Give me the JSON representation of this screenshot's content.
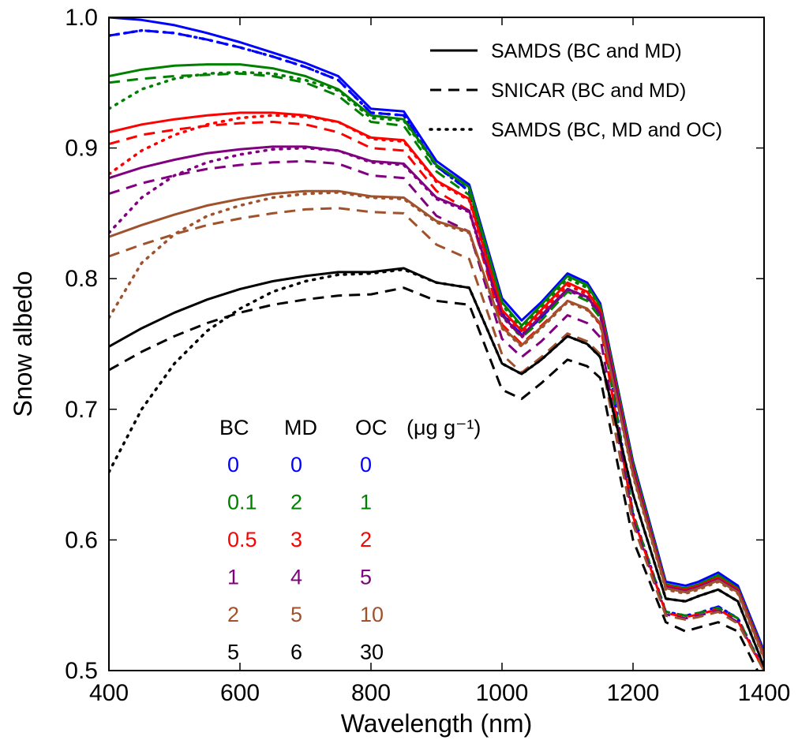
{
  "chart_data": {
    "type": "line",
    "xlabel": "Wavelength (nm)",
    "ylabel": "Snow albedo",
    "xlim": [
      400,
      1400
    ],
    "ylim": [
      0.5,
      1.0
    ],
    "xticks": [
      "400",
      "600",
      "800",
      "1000",
      "1200",
      "1400"
    ],
    "yticks": [
      "0.5",
      "0.6",
      "0.7",
      "0.8",
      "0.9",
      "1.0"
    ],
    "x": [
      400,
      450,
      500,
      550,
      600,
      650,
      700,
      750,
      800,
      850,
      900,
      950,
      1000,
      1030,
      1060,
      1100,
      1130,
      1150,
      1200,
      1250,
      1280,
      1300,
      1330,
      1360,
      1400
    ],
    "line_styles": [
      {
        "label": "SAMDS (BC and MD)",
        "dash": "solid"
      },
      {
        "label": "SNICAR (BC and MD)",
        "dash": "dashed"
      },
      {
        "label": "SAMDS (BC, MD and OC)",
        "dash": "dotted"
      }
    ],
    "legend_position": "top-right",
    "concentration_table": {
      "headers": [
        "BC",
        "MD",
        "OC",
        "(μg g⁻¹)"
      ],
      "rows": [
        {
          "bc": "0",
          "md": "0",
          "oc": "0",
          "color": "#0000ff"
        },
        {
          "bc": "0.1",
          "md": "2",
          "oc": "1",
          "color": "#008000"
        },
        {
          "bc": "0.5",
          "md": "3",
          "oc": "2",
          "color": "#ff0000"
        },
        {
          "bc": "1",
          "md": "4",
          "oc": "5",
          "color": "#800080"
        },
        {
          "bc": "2",
          "md": "5",
          "oc": "10",
          "color": "#a0522d"
        },
        {
          "bc": "5",
          "md": "6",
          "oc": "30",
          "color": "#000000"
        }
      ]
    },
    "series": [
      {
        "group": 0,
        "style": "solid",
        "color": "#0000ff",
        "values": [
          1.0,
          0.998,
          0.994,
          0.988,
          0.981,
          0.973,
          0.965,
          0.955,
          0.93,
          0.928,
          0.89,
          0.872,
          0.785,
          0.768,
          0.782,
          0.804,
          0.797,
          0.781,
          0.66,
          0.568,
          0.565,
          0.568,
          0.575,
          0.565,
          0.515
        ]
      },
      {
        "group": 0,
        "style": "dashed",
        "color": "#0000ff",
        "values": [
          0.986,
          0.99,
          0.988,
          0.983,
          0.977,
          0.97,
          0.962,
          0.952,
          0.927,
          0.925,
          0.886,
          0.867,
          0.773,
          0.757,
          0.77,
          0.792,
          0.786,
          0.774,
          0.62,
          0.545,
          0.542,
          0.544,
          0.549,
          0.54,
          0.5
        ]
      },
      {
        "group": 0,
        "style": "dotted",
        "color": "#0000ff",
        "values": [
          0.986,
          0.99,
          0.988,
          0.983,
          0.977,
          0.97,
          0.962,
          0.952,
          0.927,
          0.925,
          0.886,
          0.867,
          0.773,
          0.757,
          0.77,
          0.792,
          0.786,
          0.774,
          0.62,
          0.545,
          0.542,
          0.544,
          0.549,
          0.54,
          0.5
        ]
      },
      {
        "group": 1,
        "style": "solid",
        "color": "#008000",
        "values": [
          0.955,
          0.96,
          0.963,
          0.964,
          0.964,
          0.961,
          0.955,
          0.945,
          0.925,
          0.922,
          0.887,
          0.87,
          0.782,
          0.764,
          0.78,
          0.802,
          0.795,
          0.779,
          0.658,
          0.566,
          0.563,
          0.566,
          0.573,
          0.563,
          0.513
        ]
      },
      {
        "group": 1,
        "style": "dashed",
        "color": "#008000",
        "values": [
          0.95,
          0.953,
          0.955,
          0.956,
          0.957,
          0.955,
          0.95,
          0.94,
          0.92,
          0.917,
          0.882,
          0.864,
          0.772,
          0.755,
          0.768,
          0.79,
          0.783,
          0.77,
          0.62,
          0.545,
          0.542,
          0.544,
          0.548,
          0.54,
          0.5
        ]
      },
      {
        "group": 1,
        "style": "dotted",
        "color": "#008000",
        "values": [
          0.93,
          0.945,
          0.953,
          0.957,
          0.958,
          0.957,
          0.952,
          0.944,
          0.923,
          0.921,
          0.886,
          0.869,
          0.78,
          0.762,
          0.778,
          0.8,
          0.793,
          0.777,
          0.656,
          0.565,
          0.562,
          0.565,
          0.572,
          0.562,
          0.512
        ]
      },
      {
        "group": 2,
        "style": "solid",
        "color": "#ff0000",
        "values": [
          0.912,
          0.918,
          0.922,
          0.925,
          0.927,
          0.927,
          0.925,
          0.92,
          0.908,
          0.906,
          0.875,
          0.861,
          0.776,
          0.76,
          0.776,
          0.797,
          0.79,
          0.776,
          0.655,
          0.565,
          0.562,
          0.565,
          0.571,
          0.562,
          0.512
        ]
      },
      {
        "group": 2,
        "style": "dashed",
        "color": "#ff0000",
        "values": [
          0.903,
          0.91,
          0.914,
          0.917,
          0.919,
          0.92,
          0.918,
          0.912,
          0.9,
          0.898,
          0.867,
          0.852,
          0.765,
          0.75,
          0.764,
          0.783,
          0.777,
          0.765,
          0.618,
          0.544,
          0.541,
          0.543,
          0.547,
          0.538,
          0.5
        ]
      },
      {
        "group": 2,
        "style": "dotted",
        "color": "#ff0000",
        "values": [
          0.88,
          0.898,
          0.91,
          0.918,
          0.923,
          0.925,
          0.924,
          0.92,
          0.907,
          0.905,
          0.874,
          0.86,
          0.774,
          0.758,
          0.774,
          0.795,
          0.788,
          0.775,
          0.654,
          0.564,
          0.561,
          0.564,
          0.57,
          0.561,
          0.511
        ]
      },
      {
        "group": 3,
        "style": "solid",
        "color": "#800080",
        "values": [
          0.877,
          0.885,
          0.891,
          0.896,
          0.899,
          0.901,
          0.901,
          0.898,
          0.89,
          0.888,
          0.862,
          0.852,
          0.772,
          0.756,
          0.772,
          0.792,
          0.786,
          0.773,
          0.653,
          0.564,
          0.561,
          0.564,
          0.57,
          0.561,
          0.511
        ]
      },
      {
        "group": 3,
        "style": "dashed",
        "color": "#800080",
        "values": [
          0.865,
          0.873,
          0.879,
          0.884,
          0.887,
          0.889,
          0.89,
          0.888,
          0.879,
          0.877,
          0.848,
          0.836,
          0.754,
          0.74,
          0.752,
          0.772,
          0.766,
          0.755,
          0.615,
          0.543,
          0.54,
          0.542,
          0.546,
          0.537,
          0.5
        ]
      },
      {
        "group": 3,
        "style": "dotted",
        "color": "#800080",
        "values": [
          0.835,
          0.862,
          0.879,
          0.889,
          0.895,
          0.899,
          0.9,
          0.898,
          0.889,
          0.887,
          0.861,
          0.851,
          0.771,
          0.755,
          0.771,
          0.791,
          0.785,
          0.772,
          0.652,
          0.563,
          0.56,
          0.563,
          0.569,
          0.56,
          0.51
        ]
      },
      {
        "group": 4,
        "style": "solid",
        "color": "#a0522d",
        "values": [
          0.832,
          0.841,
          0.849,
          0.856,
          0.861,
          0.865,
          0.867,
          0.867,
          0.863,
          0.862,
          0.844,
          0.836,
          0.763,
          0.749,
          0.763,
          0.783,
          0.777,
          0.766,
          0.65,
          0.563,
          0.56,
          0.563,
          0.569,
          0.56,
          0.51
        ]
      },
      {
        "group": 4,
        "style": "dashed",
        "color": "#a0522d",
        "values": [
          0.817,
          0.826,
          0.834,
          0.841,
          0.846,
          0.85,
          0.853,
          0.854,
          0.851,
          0.85,
          0.826,
          0.815,
          0.742,
          0.728,
          0.74,
          0.758,
          0.752,
          0.742,
          0.612,
          0.542,
          0.539,
          0.541,
          0.545,
          0.536,
          0.5
        ]
      },
      {
        "group": 4,
        "style": "dotted",
        "color": "#a0522d",
        "values": [
          0.77,
          0.812,
          0.834,
          0.848,
          0.856,
          0.862,
          0.865,
          0.866,
          0.862,
          0.861,
          0.843,
          0.835,
          0.762,
          0.748,
          0.762,
          0.782,
          0.776,
          0.765,
          0.649,
          0.562,
          0.559,
          0.562,
          0.568,
          0.559,
          0.509
        ]
      },
      {
        "group": 5,
        "style": "solid",
        "color": "#000000",
        "values": [
          0.748,
          0.762,
          0.774,
          0.784,
          0.792,
          0.798,
          0.802,
          0.805,
          0.805,
          0.808,
          0.797,
          0.793,
          0.735,
          0.727,
          0.738,
          0.756,
          0.75,
          0.74,
          0.635,
          0.555,
          0.553,
          0.557,
          0.562,
          0.553,
          0.503
        ]
      },
      {
        "group": 5,
        "style": "dashed",
        "color": "#000000",
        "values": [
          0.73,
          0.744,
          0.756,
          0.766,
          0.774,
          0.78,
          0.784,
          0.787,
          0.788,
          0.793,
          0.783,
          0.78,
          0.715,
          0.708,
          0.72,
          0.738,
          0.733,
          0.724,
          0.6,
          0.537,
          0.53,
          0.533,
          0.537,
          0.53,
          0.49
        ]
      },
      {
        "group": 5,
        "style": "dotted",
        "color": "#000000",
        "values": [
          0.652,
          0.7,
          0.735,
          0.76,
          0.777,
          0.79,
          0.798,
          0.803,
          0.804,
          0.807,
          0.797,
          0.793,
          0.735,
          0.727,
          0.738,
          0.756,
          0.75,
          0.74,
          0.635,
          0.555,
          0.553,
          0.557,
          0.562,
          0.553,
          0.503
        ]
      }
    ]
  }
}
